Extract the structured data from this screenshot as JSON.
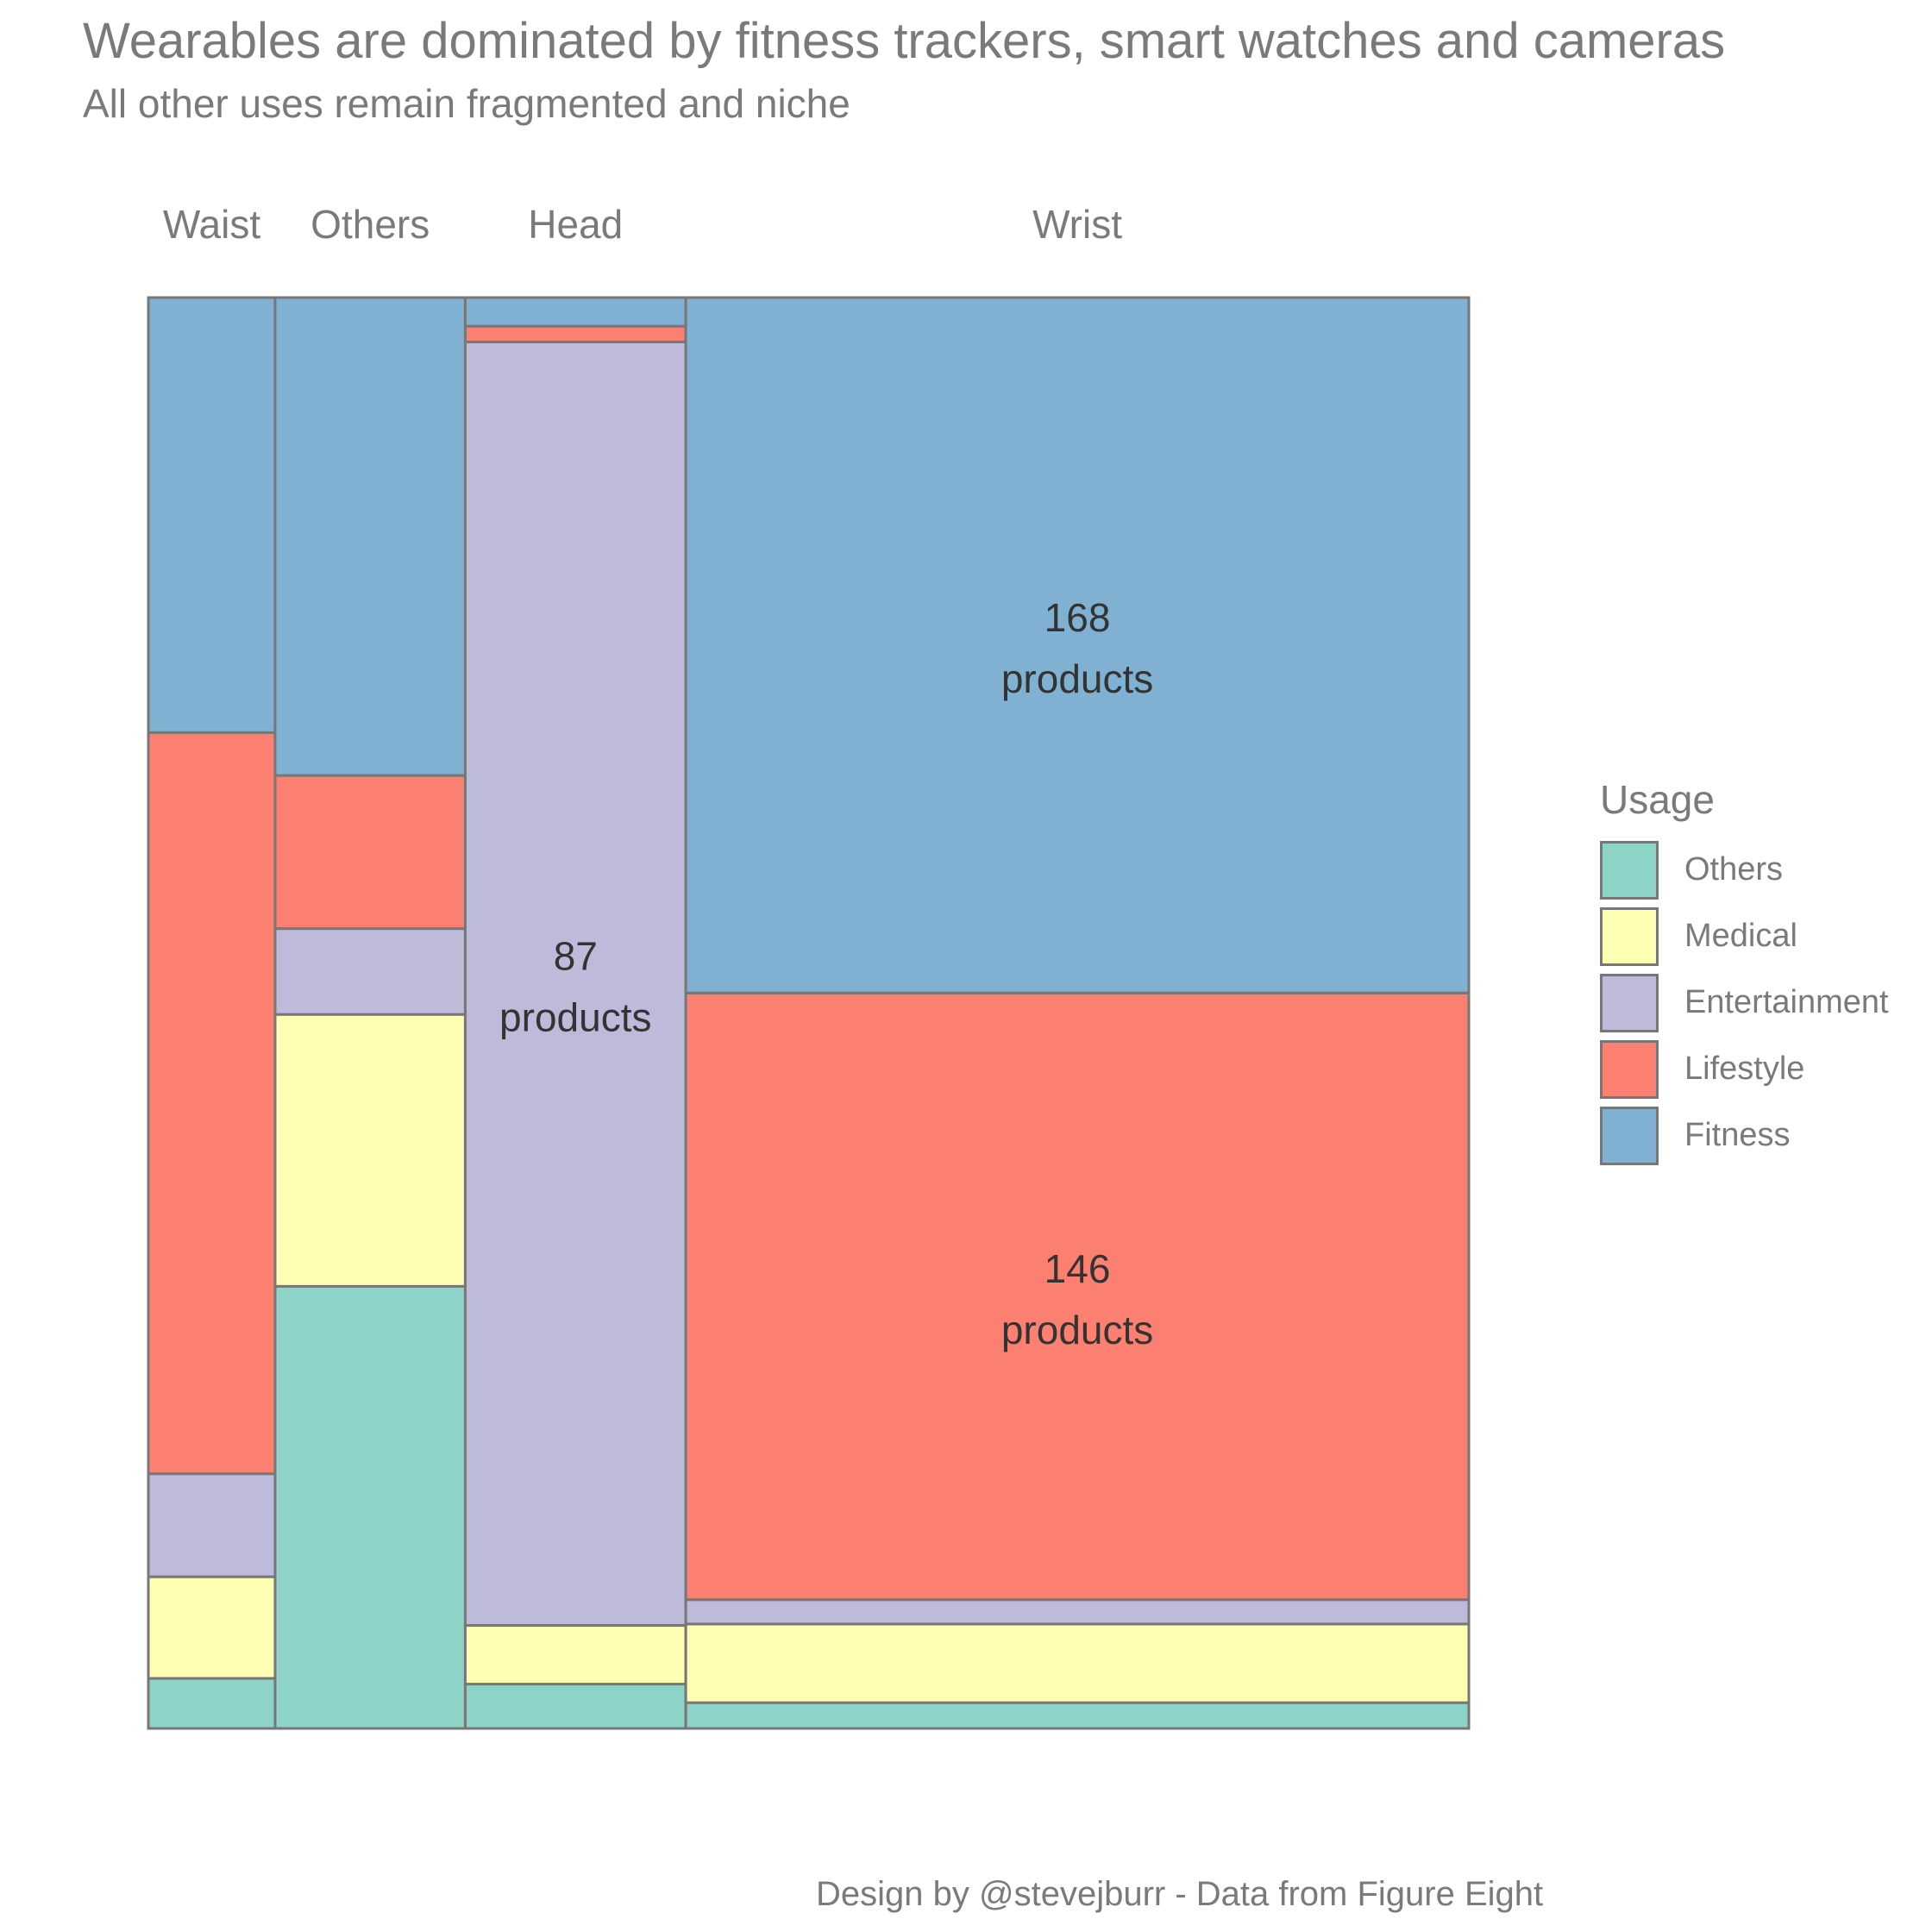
{
  "chart_data": {
    "type": "mosaic",
    "title": "Wearables are dominated by fitness trackers, smart watches and cameras",
    "subtitle": "All other uses remain fragmented and niche",
    "caption": "Design by @stevejburr - Data from Figure Eight",
    "legend": {
      "title": "Usage",
      "position": "right"
    },
    "usages": [
      "Others",
      "Medical",
      "Entertainment",
      "Lifestyle",
      "Fitness"
    ],
    "colors": {
      "Others": "#8dd3c7",
      "Medical": "#ffffb3",
      "Entertainment": "#bebada",
      "Lifestyle": "#fb8072",
      "Fitness": "#80b1d3"
    },
    "categories": [
      "Waist",
      "Others",
      "Head",
      "Wrist"
    ],
    "columns": [
      {
        "name": "Waist",
        "width_share": 0.096,
        "shares": {
          "Others": 0.035,
          "Medical": 0.071,
          "Entertainment": 0.072,
          "Lifestyle": 0.518,
          "Fitness": 0.304
        }
      },
      {
        "name": "Others",
        "width_share": 0.144,
        "shares": {
          "Others": 0.309,
          "Medical": 0.19,
          "Entertainment": 0.06,
          "Lifestyle": 0.107,
          "Fitness": 0.334
        }
      },
      {
        "name": "Head",
        "width_share": 0.167,
        "shares": {
          "Others": 0.031,
          "Medical": 0.041,
          "Entertainment": 0.897,
          "Lifestyle": 0.011,
          "Fitness": 0.02
        }
      },
      {
        "name": "Wrist",
        "width_share": 0.593,
        "shares": {
          "Others": 0.018,
          "Medical": 0.055,
          "Entertainment": 0.017,
          "Lifestyle": 0.424,
          "Fitness": 0.486
        }
      }
    ],
    "labels": [
      {
        "column": "Head",
        "usage": "Entertainment",
        "value": "87",
        "unit": "products"
      },
      {
        "column": "Wrist",
        "usage": "Fitness",
        "value": "168",
        "unit": "products"
      },
      {
        "column": "Wrist",
        "usage": "Lifestyle",
        "value": "146",
        "unit": "products"
      }
    ]
  }
}
